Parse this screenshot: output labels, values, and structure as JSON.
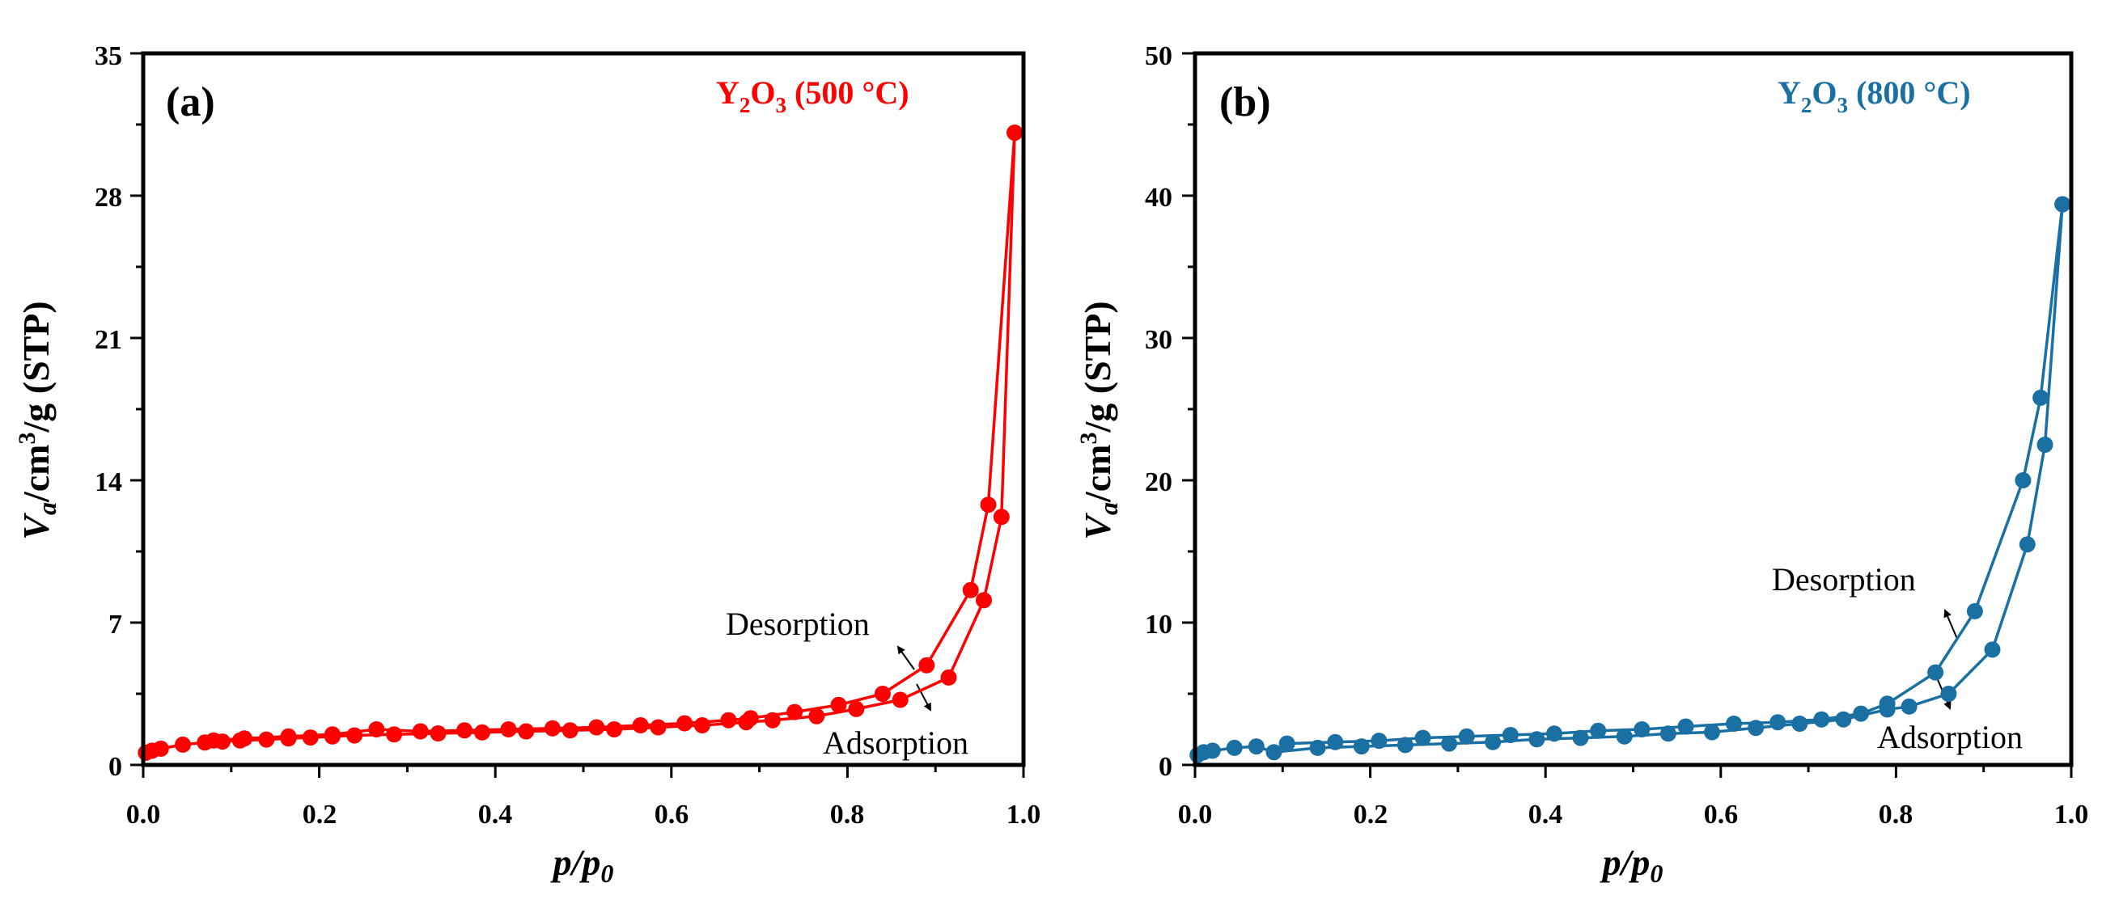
{
  "chart_data": [
    {
      "type": "line",
      "panel_label": "(a)",
      "title_parts": [
        "Y",
        "2",
        "O",
        "3",
        " (500 °C)"
      ],
      "color": "#ff0000",
      "xlabel": "p/p0",
      "ylabel": "Va/cm3/g (STP)",
      "xlim": [
        0.0,
        1.0
      ],
      "ylim": [
        0,
        35
      ],
      "xticks": [
        "0.0",
        "0.2",
        "0.4",
        "0.6",
        "0.8",
        "1.0"
      ],
      "yticks": [
        "0",
        "7",
        "14",
        "21",
        "28",
        "35"
      ],
      "series": [
        {
          "name": "Adsorption",
          "x": [
            0.003,
            0.01,
            0.02,
            0.045,
            0.07,
            0.09,
            0.11,
            0.14,
            0.165,
            0.19,
            0.215,
            0.24,
            0.285,
            0.335,
            0.385,
            0.435,
            0.485,
            0.535,
            0.585,
            0.635,
            0.685,
            0.715,
            0.765,
            0.81,
            0.86,
            0.915,
            0.955,
            0.975,
            0.99
          ],
          "y": [
            0.6,
            0.7,
            0.8,
            1.0,
            1.1,
            1.15,
            1.2,
            1.25,
            1.3,
            1.35,
            1.4,
            1.45,
            1.5,
            1.55,
            1.6,
            1.65,
            1.7,
            1.75,
            1.85,
            1.95,
            2.1,
            2.2,
            2.4,
            2.75,
            3.2,
            4.3,
            8.1,
            12.2,
            31.1
          ]
        },
        {
          "name": "Desorption",
          "x": [
            0.99,
            0.96,
            0.94,
            0.89,
            0.84,
            0.79,
            0.74,
            0.69,
            0.665,
            0.615,
            0.565,
            0.515,
            0.465,
            0.415,
            0.365,
            0.315,
            0.265,
            0.215,
            0.165,
            0.115,
            0.08
          ],
          "y": [
            31.1,
            12.8,
            8.6,
            4.9,
            3.5,
            2.95,
            2.6,
            2.3,
            2.2,
            2.05,
            1.95,
            1.85,
            1.8,
            1.75,
            1.7,
            1.65,
            1.75,
            1.5,
            1.4,
            1.3,
            1.2
          ]
        }
      ],
      "annotations": [
        "Desorption",
        "Adsorption"
      ]
    },
    {
      "type": "line",
      "panel_label": "(b)",
      "title_parts": [
        "Y",
        "2",
        "O",
        "3",
        " (800 °C)"
      ],
      "color": "#1a6fa3",
      "xlabel": "p/p0",
      "ylabel": "Va/cm3/g (STP)",
      "xlim": [
        0.0,
        1.0
      ],
      "ylim": [
        0,
        50
      ],
      "xticks": [
        "0.0",
        "0.2",
        "0.4",
        "0.6",
        "0.8",
        "1.0"
      ],
      "yticks": [
        "0",
        "10",
        "20",
        "30",
        "40",
        "50"
      ],
      "series": [
        {
          "name": "Adsorption",
          "x": [
            0.003,
            0.01,
            0.02,
            0.045,
            0.07,
            0.09,
            0.14,
            0.19,
            0.24,
            0.29,
            0.34,
            0.39,
            0.44,
            0.49,
            0.54,
            0.59,
            0.64,
            0.69,
            0.74,
            0.79,
            0.815,
            0.86,
            0.91,
            0.95,
            0.97,
            0.99
          ],
          "y": [
            0.7,
            0.9,
            1.0,
            1.2,
            1.3,
            0.9,
            1.2,
            1.3,
            1.4,
            1.5,
            1.6,
            1.8,
            1.9,
            2.0,
            2.2,
            2.3,
            2.6,
            2.9,
            3.2,
            3.9,
            4.1,
            5.0,
            8.1,
            15.5,
            22.5,
            39.4
          ]
        },
        {
          "name": "Desorption",
          "x": [
            0.99,
            0.965,
            0.945,
            0.89,
            0.845,
            0.79,
            0.76,
            0.715,
            0.665,
            0.615,
            0.56,
            0.51,
            0.46,
            0.41,
            0.36,
            0.31,
            0.26,
            0.21,
            0.16,
            0.105
          ],
          "y": [
            39.4,
            25.8,
            20.0,
            10.8,
            6.5,
            4.3,
            3.6,
            3.2,
            3.0,
            2.9,
            2.7,
            2.5,
            2.4,
            2.2,
            2.1,
            2.0,
            1.9,
            1.7,
            1.6,
            1.5
          ]
        }
      ],
      "annotations": [
        "Desorption",
        "Adsorption"
      ]
    }
  ]
}
